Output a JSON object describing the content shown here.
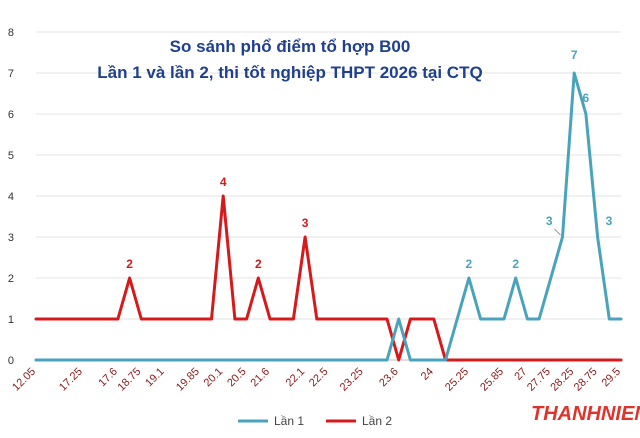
{
  "chart_data": {
    "type": "line",
    "title": "So sánh phổ điểm tổ hợp B00",
    "subtitle": "Lần 1 và lần 2, thi tốt nghiệp THPT 2026 tại CTQ",
    "ylim": [
      0,
      8
    ],
    "yticks": [
      0,
      1,
      2,
      3,
      4,
      5,
      6,
      7,
      8
    ],
    "grid": true,
    "legend_position": "bottom",
    "x": [
      "12.05",
      "12.15",
      "12.25",
      "12.35",
      "17.25",
      "17.35",
      "17.45",
      "17.6",
      "17.75",
      "18.75",
      "19",
      "19.1",
      "19.5",
      "19.75",
      "19.85",
      "20",
      "20.1",
      "20.25",
      "20.5",
      "20.75",
      "21.6",
      "21.75",
      "21.9",
      "22.1",
      "22.25",
      "22.5",
      "22.65",
      "22.9",
      "23.25",
      "23.45",
      "23.55",
      "23.6",
      "23.75",
      "23.9",
      "24",
      "24.1",
      "24.25",
      "25.25",
      "25.5",
      "25.75",
      "25.85",
      "26.5",
      "27",
      "27.5",
      "27.75",
      "28",
      "28.25",
      "28.5",
      "28.75",
      "29",
      "29.5"
    ],
    "xtick_labels": [
      "12.05",
      "17.25",
      "17.6",
      "18.75",
      "19.1",
      "19.85",
      "20.1",
      "20.5",
      "21.6",
      "22.1",
      "22.5",
      "23.25",
      "23.6",
      "24",
      "25.25",
      "25.85",
      "27",
      "27.75",
      "28.25",
      "28.75",
      "29.5"
    ],
    "xtick_indices": [
      0,
      4,
      7,
      9,
      11,
      14,
      16,
      18,
      20,
      23,
      25,
      28,
      31,
      34,
      37,
      40,
      42,
      44,
      46,
      48,
      50
    ],
    "series": [
      {
        "name": "Lần 1",
        "color": "#4aa3bd",
        "values": [
          0,
          0,
          0,
          0,
          0,
          0,
          0,
          0,
          0,
          0,
          0,
          0,
          0,
          0,
          0,
          0,
          0,
          0,
          0,
          0,
          0,
          0,
          0,
          0,
          0,
          0,
          0,
          0,
          0,
          0,
          0,
          1,
          0,
          0,
          0,
          0,
          1,
          2,
          1,
          1,
          1,
          2,
          1,
          1,
          2,
          3,
          7,
          6,
          3,
          1,
          1
        ]
      },
      {
        "name": "Lần 2",
        "color": "#d7191c",
        "values": [
          1,
          1,
          1,
          1,
          1,
          1,
          1,
          1,
          2,
          1,
          1,
          1,
          1,
          1,
          1,
          1,
          4,
          1,
          1,
          2,
          1,
          1,
          1,
          3,
          1,
          1,
          1,
          1,
          1,
          1,
          1,
          0,
          1,
          1,
          1,
          0,
          0,
          0,
          0,
          0,
          0,
          0,
          0,
          0,
          0,
          0,
          0,
          0,
          0,
          0,
          0
        ]
      }
    ],
    "data_labels": [
      {
        "series": 1,
        "index": 8,
        "text": "2"
      },
      {
        "series": 1,
        "index": 16,
        "text": "4"
      },
      {
        "series": 1,
        "index": 19,
        "text": "2"
      },
      {
        "series": 1,
        "index": 23,
        "text": "3"
      },
      {
        "series": 0,
        "index": 37,
        "text": "2"
      },
      {
        "series": 0,
        "index": 41,
        "text": "2"
      },
      {
        "series": 0,
        "index": 45,
        "text": "3"
      },
      {
        "series": 0,
        "index": 46,
        "text": "7"
      },
      {
        "series": 0,
        "index": 47,
        "text": "6"
      },
      {
        "series": 0,
        "index": 48,
        "text": "3"
      }
    ]
  },
  "watermark": {
    "text": "THANHNIEN",
    "color": "#e0332b"
  }
}
